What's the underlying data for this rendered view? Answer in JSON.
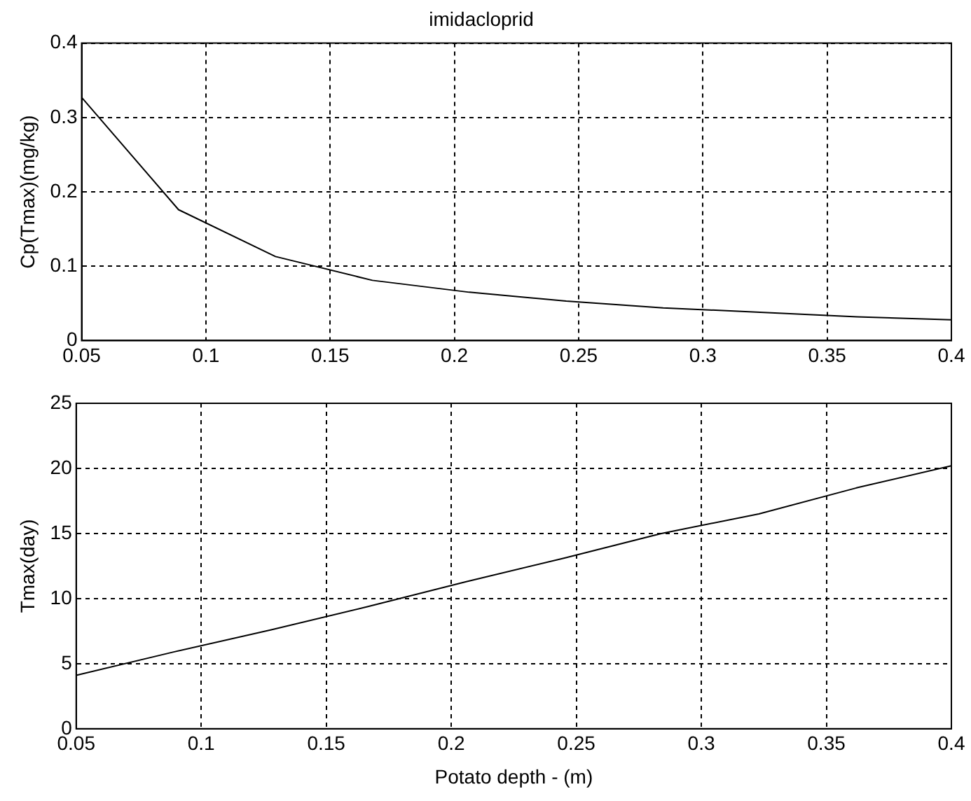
{
  "chart_data": [
    {
      "type": "line",
      "title": "imidacloprid",
      "ylabel": "Cp(Tmax)(mg/kg)",
      "x": [
        0.05,
        0.089,
        0.128,
        0.167,
        0.206,
        0.245,
        0.284,
        0.323,
        0.362,
        0.4
      ],
      "series": [
        {
          "color": "#000000",
          "values": [
            0.327,
            0.176,
            0.113,
            0.081,
            0.065,
            0.053,
            0.044,
            0.038,
            0.032,
            0.028
          ]
        }
      ],
      "xlim": [
        0.05,
        0.4
      ],
      "xticks": [
        0.05,
        0.1,
        0.15,
        0.2,
        0.25,
        0.3,
        0.35,
        0.4
      ],
      "ylim": [
        0,
        0.4
      ],
      "yticks": [
        0,
        0.1,
        0.2,
        0.3,
        0.4
      ],
      "grid": true,
      "marker": "none",
      "line_style": "solid"
    },
    {
      "type": "line",
      "xlabel": "Potato depth - (m)",
      "ylabel": "Tmax(day)",
      "x": [
        0.05,
        0.089,
        0.128,
        0.167,
        0.206,
        0.245,
        0.284,
        0.323,
        0.362,
        0.4
      ],
      "series": [
        {
          "color": "#000000",
          "values": [
            4.1,
            5.9,
            7.6,
            9.4,
            11.3,
            13.1,
            15.0,
            16.5,
            18.5,
            20.2
          ]
        }
      ],
      "xlim": [
        0.05,
        0.4
      ],
      "xticks": [
        0.05,
        0.1,
        0.15,
        0.2,
        0.25,
        0.3,
        0.35,
        0.4
      ],
      "ylim": [
        0,
        25
      ],
      "yticks": [
        0,
        5,
        10,
        15,
        20,
        25
      ],
      "grid": true,
      "marker": "none",
      "line_style": "solid"
    }
  ]
}
